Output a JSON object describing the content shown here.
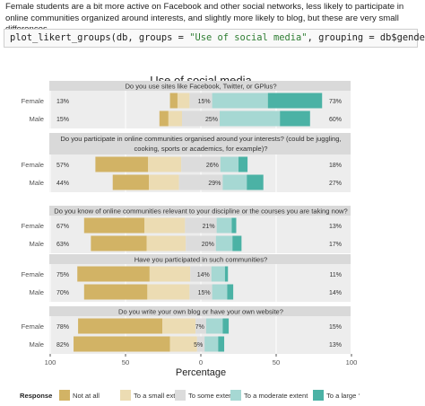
{
  "intro_text": "Female students are a bit more active on Facebook and other social networks, less likely to participate in online communities organized around interests, and slightly more likely to blog, but these are very small differences.",
  "code": {
    "prefix": "plot_likert_groups(db, groups = ",
    "string": "\"Use of social media\"",
    "suffix": ", grouping = db$gender)"
  },
  "colors": {
    "not_at_all": "#d2b365",
    "small_extent": "#ecdcb3",
    "some_extent": "#dcdcdc",
    "moderate_extent": "#a6d8d3",
    "large_extent": "#4bb2a5",
    "panel_bg": "#ededed",
    "strip_bg": "#d9d9d9"
  },
  "chart_data": {
    "type": "bar",
    "subtype": "diverging-stacked-likert",
    "title": "Use of social media",
    "xlabel": "Percentage",
    "x_ticks": [
      "100",
      "50",
      "0",
      "50",
      "100"
    ],
    "xlim": [
      -100,
      100
    ],
    "legend_title": "Response",
    "legend_position": "bottom",
    "levels": [
      "Not at all",
      "To a small extent",
      "To some extent",
      "To a moderate extent",
      "To a large ‘"
    ],
    "groups": [
      "Female",
      "Male"
    ],
    "panels": [
      {
        "question": "Do you use sites like Facebook, Twitter, or GPlus?",
        "rows": [
          {
            "group": "Female",
            "left_pct": "13%",
            "center_pct": "15%",
            "right_pct": "73%",
            "values": [
              5,
              8,
              15,
              37,
              36
            ]
          },
          {
            "group": "Male",
            "left_pct": "15%",
            "center_pct": "25%",
            "right_pct": "60%",
            "values": [
              6,
              9,
              25,
              40,
              20
            ]
          }
        ]
      },
      {
        "question": "Do you participate in online communities organised around your interests? (could be juggling, cooking, sports or academics, for example)?",
        "rows": [
          {
            "group": "Female",
            "left_pct": "57%",
            "center_pct": "26%",
            "right_pct": "18%",
            "values": [
              35,
              22,
              26,
              12,
              6
            ]
          },
          {
            "group": "Male",
            "left_pct": "44%",
            "center_pct": "29%",
            "right_pct": "27%",
            "values": [
              24,
              20,
              29,
              16,
              11
            ]
          }
        ]
      },
      {
        "question": "Do you know of online communities relevant to your discipline or the courses you are taking now?",
        "rows": [
          {
            "group": "Female",
            "left_pct": "67%",
            "center_pct": "21%",
            "right_pct": "13%",
            "values": [
              40,
              27,
              21,
              10,
              3
            ]
          },
          {
            "group": "Male",
            "left_pct": "63%",
            "center_pct": "20%",
            "right_pct": "17%",
            "values": [
              37,
              26,
              20,
              11,
              6
            ]
          }
        ]
      },
      {
        "question": "Have you participated in such communities?",
        "rows": [
          {
            "group": "Female",
            "left_pct": "75%",
            "center_pct": "14%",
            "right_pct": "11%",
            "values": [
              48,
              27,
              14,
              9,
              2
            ]
          },
          {
            "group": "Male",
            "left_pct": "70%",
            "center_pct": "15%",
            "right_pct": "14%",
            "values": [
              42,
              28,
              15,
              10,
              4
            ]
          }
        ]
      },
      {
        "question": "Do you write your own blog or have your own website?",
        "rows": [
          {
            "group": "Female",
            "left_pct": "78%",
            "center_pct": "7%",
            "right_pct": "15%",
            "values": [
              56,
              22,
              7,
              11,
              4
            ]
          },
          {
            "group": "Male",
            "left_pct": "82%",
            "center_pct": "5%",
            "right_pct": "13%",
            "values": [
              64,
              18,
              5,
              9,
              4
            ]
          }
        ]
      }
    ]
  }
}
